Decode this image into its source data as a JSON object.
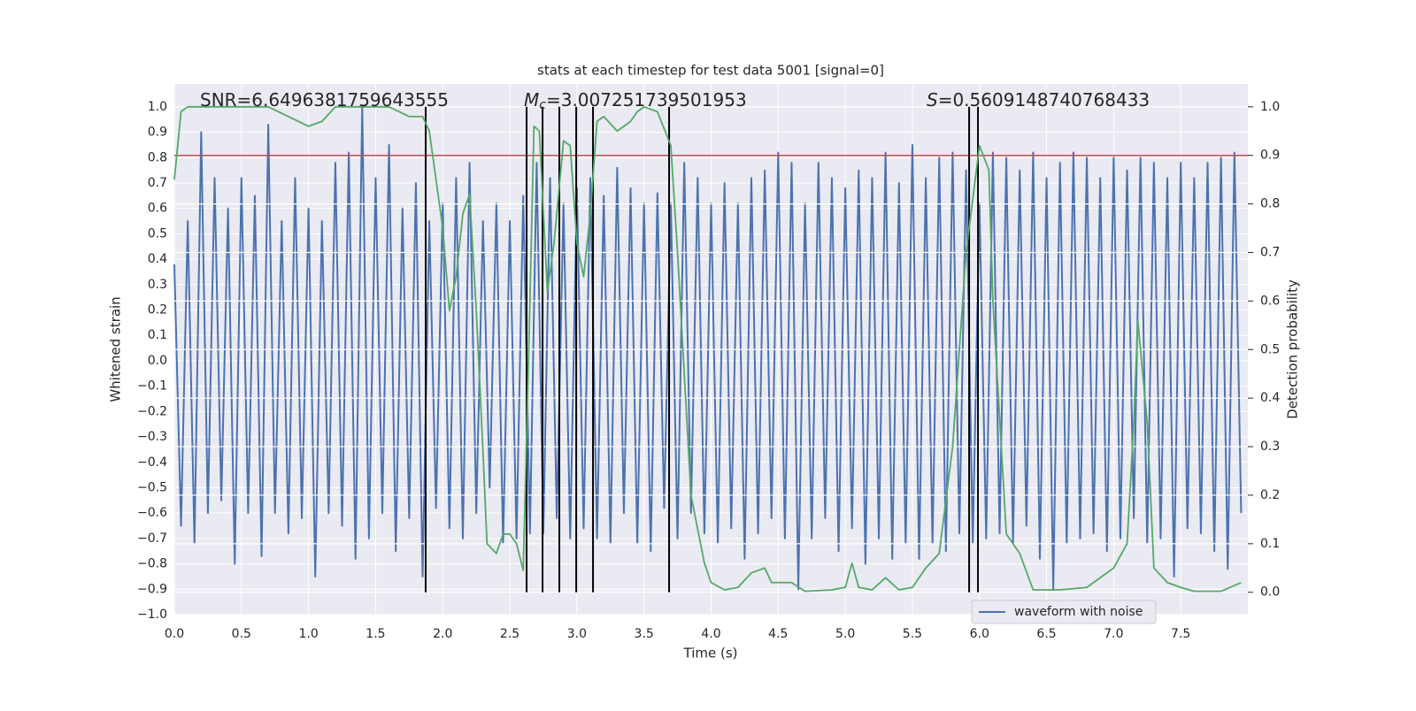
{
  "chart_data": {
    "type": "line",
    "title": "stats at each timestep for test data 5001 [signal=0]",
    "xlabel": "Time (s)",
    "ylabel": "Whitened strain",
    "y2label": "Detection probability",
    "xlim": [
      0,
      8
    ],
    "ylim": [
      -1.0,
      1.09
    ],
    "y2lim": [
      -0.046,
      1.047
    ],
    "grid": true,
    "background": "#eaeaf2",
    "legend": "lower right",
    "xticks": [
      {
        "value": 0,
        "label": "0.0"
      },
      0.5,
      {
        "value": 1,
        "label": "1.0"
      },
      1.5,
      {
        "value": 2,
        "label": "2.0"
      },
      2.5,
      {
        "value": 3,
        "label": "3.0"
      },
      3.5,
      {
        "value": 4,
        "label": "4.0"
      },
      4.5,
      {
        "value": 5,
        "label": "5.0"
      },
      5.5,
      {
        "value": 6,
        "label": "6.0"
      },
      6.5,
      {
        "value": 7,
        "label": "7.0"
      },
      7.5
    ],
    "yticks": [
      {
        "value": -1.0,
        "label": "−1.0"
      },
      {
        "value": -0.9,
        "label": "−0.9"
      },
      {
        "value": -0.8,
        "label": "−0.8"
      },
      {
        "value": -0.7,
        "label": "−0.7"
      },
      {
        "value": -0.6,
        "label": "−0.6"
      },
      {
        "value": -0.5,
        "label": "−0.5"
      },
      {
        "value": -0.4,
        "label": "−0.4"
      },
      {
        "value": -0.3,
        "label": "−0.3"
      },
      {
        "value": -0.2,
        "label": "−0.2"
      },
      {
        "value": -0.1,
        "label": "−0.1"
      },
      {
        "value": 0,
        "label": "0.0"
      },
      0.1,
      0.2,
      0.3,
      0.4,
      0.5,
      0.6,
      0.7,
      0.8,
      0.9,
      {
        "value": 1,
        "label": "1.0"
      }
    ],
    "y2ticks": [
      {
        "value": 0,
        "label": "0.0"
      },
      0.1,
      0.2,
      0.3,
      0.4,
      0.5,
      0.6,
      0.7,
      0.8,
      0.9,
      {
        "value": 1,
        "label": "1.0"
      }
    ],
    "series": [
      {
        "name": "waveform with noise",
        "color": "#4c72b0",
        "x": [
          0,
          0.05,
          0.1,
          0.15,
          0.2,
          0.25,
          0.3,
          0.35,
          0.4,
          0.45,
          0.5,
          0.55,
          0.6,
          0.65,
          0.7,
          0.75,
          0.8,
          0.85,
          0.9,
          0.95,
          1,
          1.05,
          1.1,
          1.15,
          1.2,
          1.25,
          1.3,
          1.35,
          1.4,
          1.45,
          1.5,
          1.55,
          1.6,
          1.65,
          1.7,
          1.75,
          1.8,
          1.85,
          1.9,
          1.95,
          2,
          2.05,
          2.1,
          2.15,
          2.2,
          2.25,
          2.3,
          2.35,
          2.4,
          2.45,
          2.5,
          2.55,
          2.6,
          2.65,
          2.7,
          2.75,
          2.8,
          2.85,
          2.9,
          2.95,
          3,
          3.05,
          3.1,
          3.15,
          3.2,
          3.25,
          3.3,
          3.35,
          3.4,
          3.45,
          3.5,
          3.55,
          3.6,
          3.65,
          3.7,
          3.75,
          3.8,
          3.85,
          3.9,
          3.95,
          4,
          4.05,
          4.1,
          4.15,
          4.2,
          4.25,
          4.3,
          4.35,
          4.4,
          4.45,
          4.5,
          4.55,
          4.6,
          4.65,
          4.7,
          4.75,
          4.8,
          4.85,
          4.9,
          4.95,
          5,
          5.05,
          5.1,
          5.15,
          5.2,
          5.25,
          5.3,
          5.35,
          5.4,
          5.45,
          5.5,
          5.55,
          5.6,
          5.65,
          5.7,
          5.75,
          5.8,
          5.85,
          5.9,
          5.95,
          6,
          6.05,
          6.1,
          6.15,
          6.2,
          6.25,
          6.3,
          6.35,
          6.4,
          6.45,
          6.5,
          6.55,
          6.6,
          6.65,
          6.7,
          6.75,
          6.8,
          6.85,
          6.9,
          6.95,
          7,
          7.05,
          7.1,
          7.15,
          7.2,
          7.25,
          7.3,
          7.35,
          7.4,
          7.45,
          7.5,
          7.55,
          7.6,
          7.65,
          7.7,
          7.75,
          7.8,
          7.85,
          7.9,
          7.95
        ],
        "values": [
          0.38,
          -0.65,
          0.55,
          -0.72,
          0.9,
          -0.6,
          0.72,
          -0.55,
          0.6,
          -0.8,
          0.72,
          -0.6,
          0.65,
          -0.77,
          0.93,
          -0.6,
          0.55,
          -0.68,
          0.72,
          -0.62,
          0.6,
          -0.85,
          0.55,
          -0.6,
          0.78,
          -0.65,
          0.82,
          -0.78,
          1.0,
          -0.7,
          0.72,
          -0.6,
          0.85,
          -0.75,
          0.6,
          -0.62,
          0.7,
          -0.85,
          0.55,
          -0.58,
          0.62,
          -0.66,
          0.72,
          -0.7,
          0.78,
          -0.6,
          0.55,
          -0.5,
          0.62,
          -0.72,
          0.55,
          -0.7,
          0.65,
          -0.68,
          0.78,
          -0.68,
          0.72,
          -0.62,
          0.62,
          -0.7,
          0.68,
          -0.66,
          0.72,
          -0.7,
          0.65,
          -0.72,
          0.76,
          -0.6,
          0.68,
          -0.72,
          0.62,
          -0.75,
          0.66,
          -0.58,
          0.62,
          -0.7,
          0.78,
          -0.6,
          0.72,
          -0.68,
          0.62,
          -0.72,
          0.7,
          -0.66,
          0.62,
          -0.78,
          0.72,
          -0.68,
          0.75,
          -0.62,
          0.82,
          -0.7,
          0.78,
          -0.9,
          0.62,
          -0.7,
          0.78,
          -0.62,
          0.72,
          -0.75,
          0.68,
          -0.66,
          0.75,
          -0.8,
          0.72,
          -0.7,
          0.82,
          -0.78,
          0.7,
          -0.72,
          0.85,
          -0.78,
          0.72,
          -0.72,
          0.8,
          -0.75,
          0.82,
          -0.68,
          0.75,
          -0.72,
          0.62,
          -0.7,
          0.82,
          -0.68,
          0.8,
          -0.72,
          0.75,
          -0.65,
          0.82,
          -0.78,
          0.72,
          -0.9,
          0.78,
          -0.72,
          0.82,
          -0.7,
          0.8,
          -0.68,
          0.72,
          -0.75,
          0.8,
          -0.7,
          0.75,
          -0.62,
          0.8,
          -0.72,
          0.78,
          -0.7,
          0.72,
          -0.85,
          0.78,
          -0.66,
          0.72,
          -0.68,
          0.78,
          -0.75,
          0.8,
          -0.82,
          0.82,
          -0.6
        ]
      },
      {
        "color": "#55a868",
        "axis": "y2",
        "x": [
          0,
          0.05,
          0.1,
          0.7,
          0.85,
          1.0,
          1.1,
          1.2,
          1.6,
          1.75,
          1.85,
          1.9,
          1.95,
          2.0,
          2.05,
          2.1,
          2.15,
          2.2,
          2.25,
          2.3,
          2.33,
          2.4,
          2.45,
          2.5,
          2.55,
          2.6,
          2.65,
          2.68,
          2.72,
          2.78,
          2.83,
          2.9,
          2.95,
          3.0,
          3.05,
          3.1,
          3.15,
          3.2,
          3.3,
          3.4,
          3.45,
          3.5,
          3.6,
          3.7,
          3.75,
          3.8,
          3.85,
          3.95,
          4.0,
          4.1,
          4.2,
          4.3,
          4.4,
          4.45,
          4.6,
          4.7,
          4.9,
          5.0,
          5.05,
          5.1,
          5.2,
          5.3,
          5.4,
          5.5,
          5.6,
          5.7,
          5.8,
          5.9,
          6.0,
          6.07,
          6.1,
          6.2,
          6.3,
          6.4,
          6.6,
          6.8,
          6.95,
          7.0,
          7.1,
          7.15,
          7.18,
          7.25,
          7.3,
          7.4,
          7.5,
          7.6,
          7.8,
          7.95
        ],
        "values": [
          0.85,
          0.99,
          1.0,
          1.0,
          0.98,
          0.96,
          0.97,
          1.0,
          1.0,
          0.98,
          0.98,
          0.95,
          0.85,
          0.75,
          0.58,
          0.65,
          0.78,
          0.82,
          0.58,
          0.29,
          0.1,
          0.08,
          0.12,
          0.12,
          0.1,
          0.045,
          0.6,
          0.96,
          0.95,
          0.62,
          0.72,
          0.93,
          0.92,
          0.72,
          0.65,
          0.78,
          0.97,
          0.98,
          0.95,
          0.97,
          0.99,
          1.0,
          0.99,
          0.92,
          0.7,
          0.45,
          0.2,
          0.06,
          0.02,
          0.005,
          0.01,
          0.04,
          0.05,
          0.02,
          0.02,
          0.002,
          0.005,
          0.01,
          0.06,
          0.01,
          0.005,
          0.03,
          0.005,
          0.01,
          0.05,
          0.08,
          0.3,
          0.7,
          0.92,
          0.87,
          0.6,
          0.12,
          0.08,
          0.005,
          0.005,
          0.01,
          0.04,
          0.05,
          0.1,
          0.35,
          0.56,
          0.35,
          0.05,
          0.02,
          0.01,
          0.002,
          0.002,
          0.02
        ]
      }
    ],
    "hlines": [
      {
        "value": 0.9,
        "axis": "y2",
        "color": "#c44e52"
      }
    ],
    "vlines": {
      "x": [
        1.873,
        2.625,
        2.744,
        2.869,
        2.995,
        3.12,
        3.687,
        5.923,
        5.989
      ],
      "ymin": 0,
      "ymax": 1,
      "axis": "y2",
      "color": "#000000"
    },
    "annotations": [
      {
        "text": "SNR=6.6496381759643555"
      },
      {
        "symbol": "M",
        "subscript": "c",
        "text": "=3.007251739501953"
      },
      {
        "symbol": "S",
        "text": "=0.5609148740768433"
      }
    ]
  }
}
